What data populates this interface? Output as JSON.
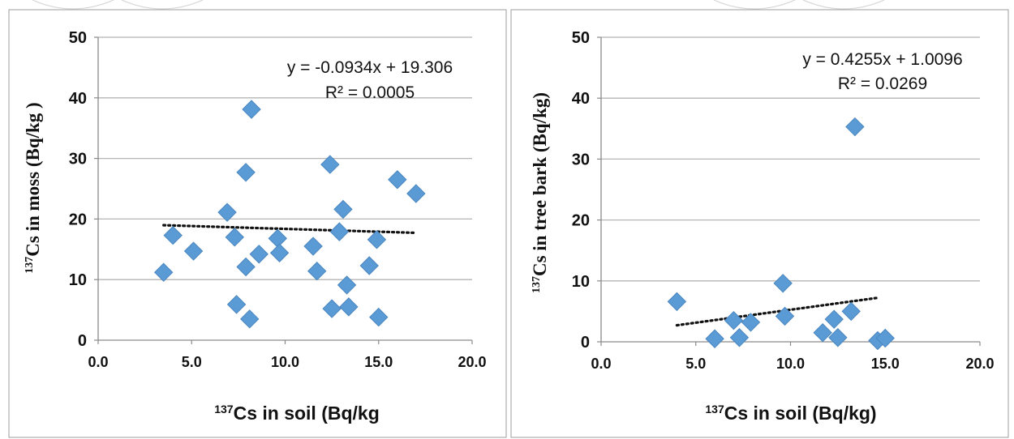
{
  "colors": {
    "marker": "#5b9bd5",
    "marker_stroke": "#4a86bf",
    "gridline": "#b5b5b5",
    "axis": "#8a8a8a",
    "trendline": "#111111",
    "frame": "#9e9e9e",
    "watermark": "#cfcfcf"
  },
  "chart_data": [
    {
      "type": "scatter",
      "title": "",
      "xlabel_prefix": "137",
      "xlabel": "Cs in soil (Bq/kg",
      "ylabel_prefix": "137",
      "ylabel": "Cs in moss (Bq/kg )",
      "xlim": [
        0,
        20
      ],
      "ylim": [
        0,
        50
      ],
      "xticks": [
        "0.0",
        "5.0",
        "10.0",
        "15.0",
        "20.0"
      ],
      "yticks": [
        "0",
        "10",
        "20",
        "30",
        "40",
        "50"
      ],
      "grid": "horizontal",
      "marker": "diamond",
      "points": [
        [
          3.5,
          11.2
        ],
        [
          4.0,
          17.3
        ],
        [
          5.1,
          14.7
        ],
        [
          6.9,
          21.1
        ],
        [
          7.3,
          17.0
        ],
        [
          7.4,
          5.9
        ],
        [
          7.9,
          27.7
        ],
        [
          7.9,
          12.1
        ],
        [
          8.1,
          3.5
        ],
        [
          8.2,
          38.1
        ],
        [
          8.6,
          14.2
        ],
        [
          9.6,
          16.8
        ],
        [
          9.7,
          14.4
        ],
        [
          11.5,
          15.5
        ],
        [
          11.7,
          11.4
        ],
        [
          12.4,
          29.0
        ],
        [
          12.5,
          5.2
        ],
        [
          12.9,
          17.9
        ],
        [
          13.1,
          21.6
        ],
        [
          13.3,
          9.1
        ],
        [
          13.4,
          5.5
        ],
        [
          14.5,
          12.3
        ],
        [
          14.9,
          16.6
        ],
        [
          15.0,
          3.8
        ],
        [
          16.0,
          26.5
        ],
        [
          17.0,
          24.2
        ]
      ],
      "trendline": {
        "slope": -0.0934,
        "intercept": 19.306,
        "x_range": [
          3.5,
          17.0
        ],
        "style": "dotted"
      },
      "equation": "y = -0.0934x + 19.306",
      "r_squared": "R² = 0.0005"
    },
    {
      "type": "scatter",
      "title": "",
      "xlabel_prefix": "137",
      "xlabel": "Cs in soil (Bq/kg)",
      "ylabel_prefix": "137",
      "ylabel": "Cs in tree bark (Bq/kg)",
      "xlim": [
        0,
        20
      ],
      "ylim": [
        0,
        50
      ],
      "xticks": [
        "0.0",
        "5.0",
        "10.0",
        "15.0",
        "20.0"
      ],
      "yticks": [
        "0",
        "10",
        "20",
        "30",
        "40",
        "50"
      ],
      "grid": "horizontal",
      "marker": "diamond",
      "points": [
        [
          4.0,
          6.6
        ],
        [
          6.0,
          0.5
        ],
        [
          7.0,
          3.5
        ],
        [
          7.3,
          0.7
        ],
        [
          7.9,
          3.2
        ],
        [
          9.6,
          9.6
        ],
        [
          9.7,
          4.2
        ],
        [
          11.7,
          1.5
        ],
        [
          12.3,
          3.7
        ],
        [
          12.5,
          0.7
        ],
        [
          13.2,
          5.0
        ],
        [
          13.4,
          35.3
        ],
        [
          14.6,
          0.2
        ],
        [
          15.0,
          0.6
        ]
      ],
      "trendline": {
        "slope": 0.4255,
        "intercept": 1.0096,
        "x_range": [
          4.0,
          14.6
        ],
        "style": "dotted"
      },
      "equation": "y = 0.4255x + 1.0096",
      "r_squared": "R² = 0.0269"
    }
  ]
}
